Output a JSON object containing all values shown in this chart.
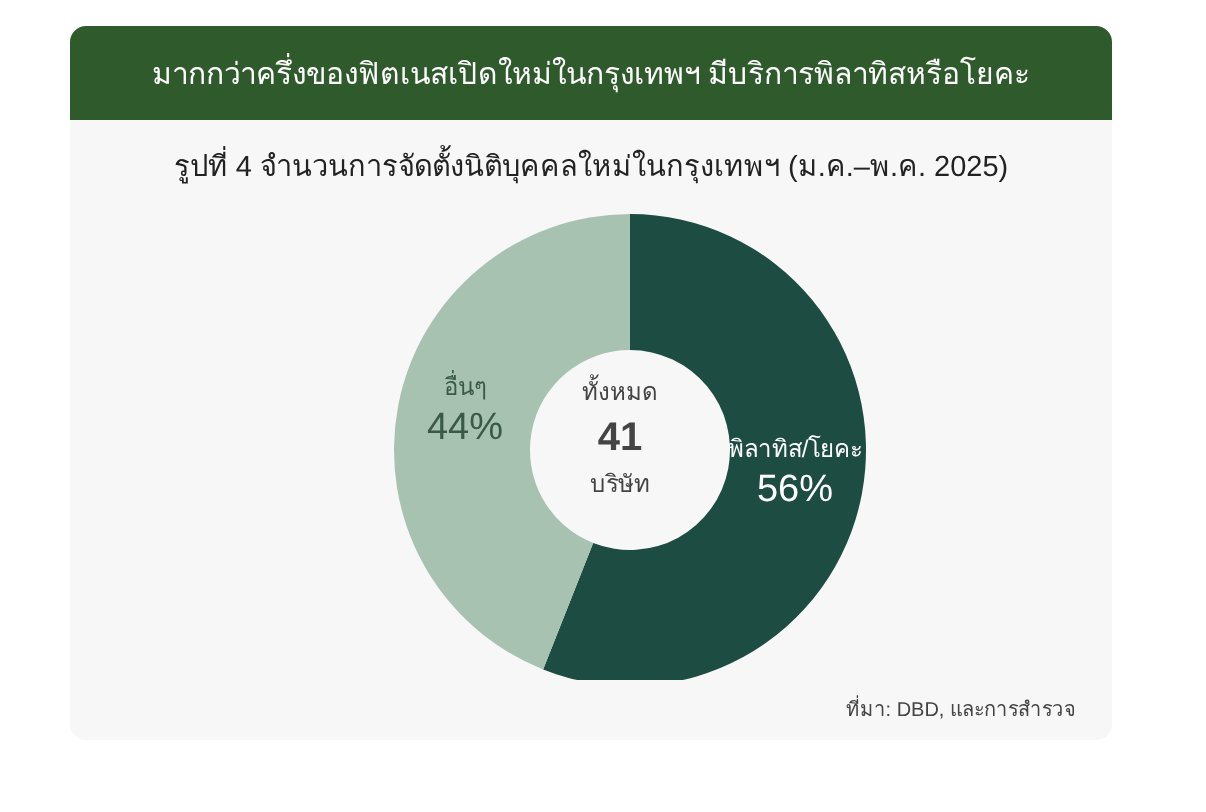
{
  "chart_data": {
    "type": "donut",
    "title": "มากกว่าครึ่งของฟิตเนสเปิดใหม่ในกรุงเทพฯ มีบริการพิลาทิสหรือโยคะ",
    "subtitle": "รูปที่ 4 จำนวนการจัดตั้งนิติบุคคลใหม่ในกรุงเทพฯ (ม.ค.–พ.ค. 2025)",
    "categories": [
      "พิลาทิส/โยคะ",
      "อื่นๆ"
    ],
    "values": [
      56,
      44
    ],
    "colors": [
      "#1d4d42",
      "#a8c2b2"
    ],
    "value_labels": [
      "56%",
      "44%"
    ],
    "annotations": [
      "ทั้งหมด",
      "41",
      "บริษัท",
      "ที่มา: DBD, และการสำรวจ"
    ]
  }
}
